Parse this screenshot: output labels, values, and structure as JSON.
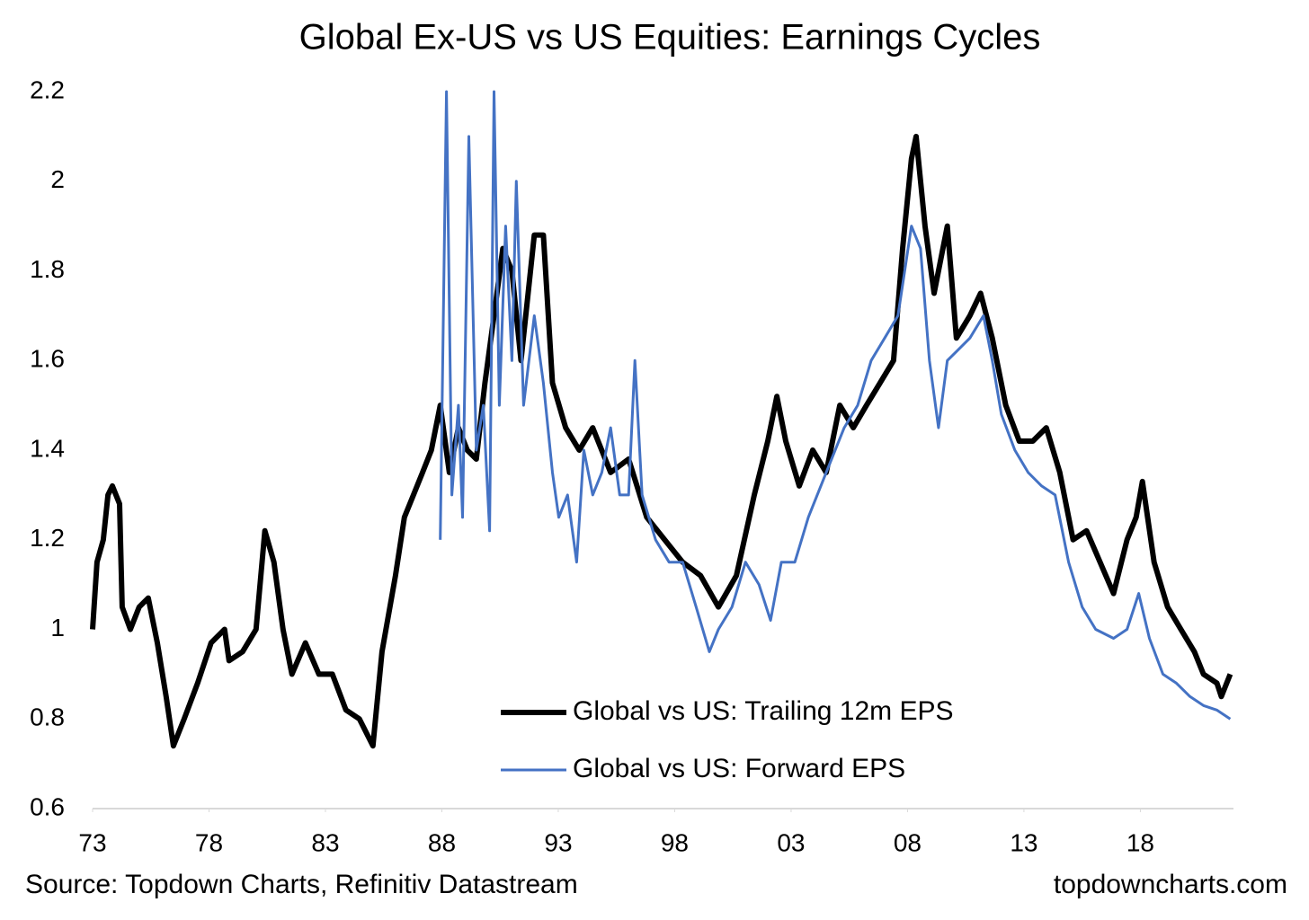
{
  "chart_data": {
    "type": "line",
    "title": "Global Ex-US vs US Equities: Earnings Cycles",
    "source": "Source: Topdown Charts, Refinitiv Datastream",
    "watermark": "topdowncharts.com",
    "xlim": [
      1973,
      2022
    ],
    "xticks": [
      {
        "value": 1973,
        "label": "73"
      },
      {
        "value": 1978,
        "label": "78"
      },
      {
        "value": 1983,
        "label": "83"
      },
      {
        "value": 1988,
        "label": "88"
      },
      {
        "value": 1993,
        "label": "93"
      },
      {
        "value": 1998,
        "label": "98"
      },
      {
        "value": 2003,
        "label": "03"
      },
      {
        "value": 2008,
        "label": "08"
      },
      {
        "value": 2013,
        "label": "13"
      },
      {
        "value": 2018,
        "label": "18"
      }
    ],
    "ylim": [
      0.6,
      2.2
    ],
    "yticks": [
      0.6,
      0.8,
      1,
      1.2,
      1.4,
      1.6,
      1.8,
      2,
      2.2
    ],
    "grid": false,
    "legend": "bottom-center",
    "series": [
      {
        "name": "Global vs US: Trailing 12m EPS",
        "color": "#000000",
        "x": [
          1973.0,
          1973.19,
          1973.46,
          1973.66,
          1973.85,
          1974.16,
          1974.27,
          1974.62,
          1975.0,
          1975.39,
          1975.78,
          1976.16,
          1976.47,
          1976.93,
          1977.51,
          1978.09,
          1978.67,
          1978.86,
          1979.44,
          1980.02,
          1980.4,
          1980.79,
          1981.18,
          1981.56,
          1982.14,
          1982.72,
          1983.3,
          1983.88,
          1984.46,
          1985.04,
          1985.43,
          1986.01,
          1986.39,
          1986.78,
          1987.17,
          1987.55,
          1987.93,
          1988.32,
          1988.71,
          1989.09,
          1989.48,
          1989.85,
          1990.24,
          1990.62,
          1991.01,
          1991.4,
          1991.97,
          1992.36,
          1992.75,
          1993.32,
          1993.9,
          1994.48,
          1995.25,
          1996.02,
          1996.8,
          1997.57,
          1998.34,
          1999.11,
          1999.88,
          2000.65,
          2001.42,
          2002.0,
          2002.39,
          2002.77,
          2003.35,
          2003.93,
          2004.51,
          2005.09,
          2005.67,
          2006.24,
          2006.82,
          2007.4,
          2007.79,
          2008.17,
          2008.37,
          2008.75,
          2009.14,
          2009.71,
          2010.1,
          2010.68,
          2011.14,
          2011.64,
          2012.22,
          2012.8,
          2013.38,
          2013.96,
          2014.54,
          2015.11,
          2015.69,
          2016.27,
          2016.85,
          2017.43,
          2017.82,
          2018.09,
          2018.59,
          2019.17,
          2019.74,
          2020.32,
          2020.71,
          2021.29,
          2021.48,
          2021.86
        ],
        "values": [
          1.0,
          1.15,
          1.2,
          1.3,
          1.32,
          1.28,
          1.05,
          1.0,
          1.05,
          1.07,
          0.97,
          0.85,
          0.74,
          0.8,
          0.88,
          0.97,
          1.0,
          0.93,
          0.95,
          1.0,
          1.22,
          1.15,
          1.0,
          0.9,
          0.97,
          0.9,
          0.9,
          0.82,
          0.8,
          0.74,
          0.95,
          1.12,
          1.25,
          1.3,
          1.35,
          1.4,
          1.5,
          1.35,
          1.45,
          1.4,
          1.38,
          1.55,
          1.7,
          1.85,
          1.8,
          1.6,
          1.88,
          1.88,
          1.55,
          1.45,
          1.4,
          1.45,
          1.35,
          1.38,
          1.25,
          1.2,
          1.15,
          1.12,
          1.05,
          1.12,
          1.3,
          1.42,
          1.52,
          1.42,
          1.32,
          1.4,
          1.35,
          1.5,
          1.45,
          1.5,
          1.55,
          1.6,
          1.85,
          2.05,
          2.1,
          1.9,
          1.75,
          1.9,
          1.65,
          1.7,
          1.75,
          1.65,
          1.5,
          1.42,
          1.42,
          1.45,
          1.35,
          1.2,
          1.22,
          1.15,
          1.08,
          1.2,
          1.25,
          1.33,
          1.15,
          1.05,
          1.0,
          0.95,
          0.9,
          0.88,
          0.85,
          0.9
        ]
      },
      {
        "name": "Global vs US: Forward EPS",
        "color": "#4472c4",
        "x": [
          1987.93,
          1988.2,
          1988.43,
          1988.71,
          1988.89,
          1989.16,
          1989.48,
          1989.78,
          1990.05,
          1990.24,
          1990.47,
          1990.74,
          1991.01,
          1991.2,
          1991.51,
          1991.97,
          1992.36,
          1992.75,
          1993.02,
          1993.4,
          1993.79,
          1994.1,
          1994.48,
          1994.87,
          1995.25,
          1995.64,
          1996.02,
          1996.29,
          1996.6,
          1997.18,
          1997.76,
          1998.34,
          1998.92,
          1999.49,
          1999.88,
          2000.46,
          2001.04,
          2001.62,
          2002.12,
          2002.58,
          2003.16,
          2003.74,
          2004.51,
          2005.28,
          2005.86,
          2006.44,
          2007.02,
          2007.59,
          2008.17,
          2008.56,
          2008.94,
          2009.33,
          2009.71,
          2010.1,
          2010.68,
          2011.26,
          2011.64,
          2012.03,
          2012.61,
          2013.18,
          2013.76,
          2014.34,
          2014.92,
          2015.5,
          2016.08,
          2016.85,
          2017.43,
          2017.93,
          2018.39,
          2018.97,
          2019.55,
          2020.13,
          2020.71,
          2021.28,
          2021.86
        ],
        "values": [
          1.2,
          2.2,
          1.3,
          1.5,
          1.25,
          2.1,
          1.4,
          1.5,
          1.22,
          2.2,
          1.5,
          1.9,
          1.6,
          2.0,
          1.5,
          1.7,
          1.55,
          1.35,
          1.25,
          1.3,
          1.15,
          1.4,
          1.3,
          1.35,
          1.45,
          1.3,
          1.3,
          1.6,
          1.3,
          1.2,
          1.15,
          1.15,
          1.05,
          0.95,
          1.0,
          1.05,
          1.15,
          1.1,
          1.02,
          1.15,
          1.15,
          1.25,
          1.35,
          1.45,
          1.5,
          1.6,
          1.65,
          1.7,
          1.9,
          1.85,
          1.6,
          1.45,
          1.6,
          1.62,
          1.65,
          1.7,
          1.6,
          1.48,
          1.4,
          1.35,
          1.32,
          1.3,
          1.15,
          1.05,
          1.0,
          0.98,
          1.0,
          1.08,
          0.98,
          0.9,
          0.88,
          0.85,
          0.83,
          0.82,
          0.8
        ]
      }
    ]
  }
}
